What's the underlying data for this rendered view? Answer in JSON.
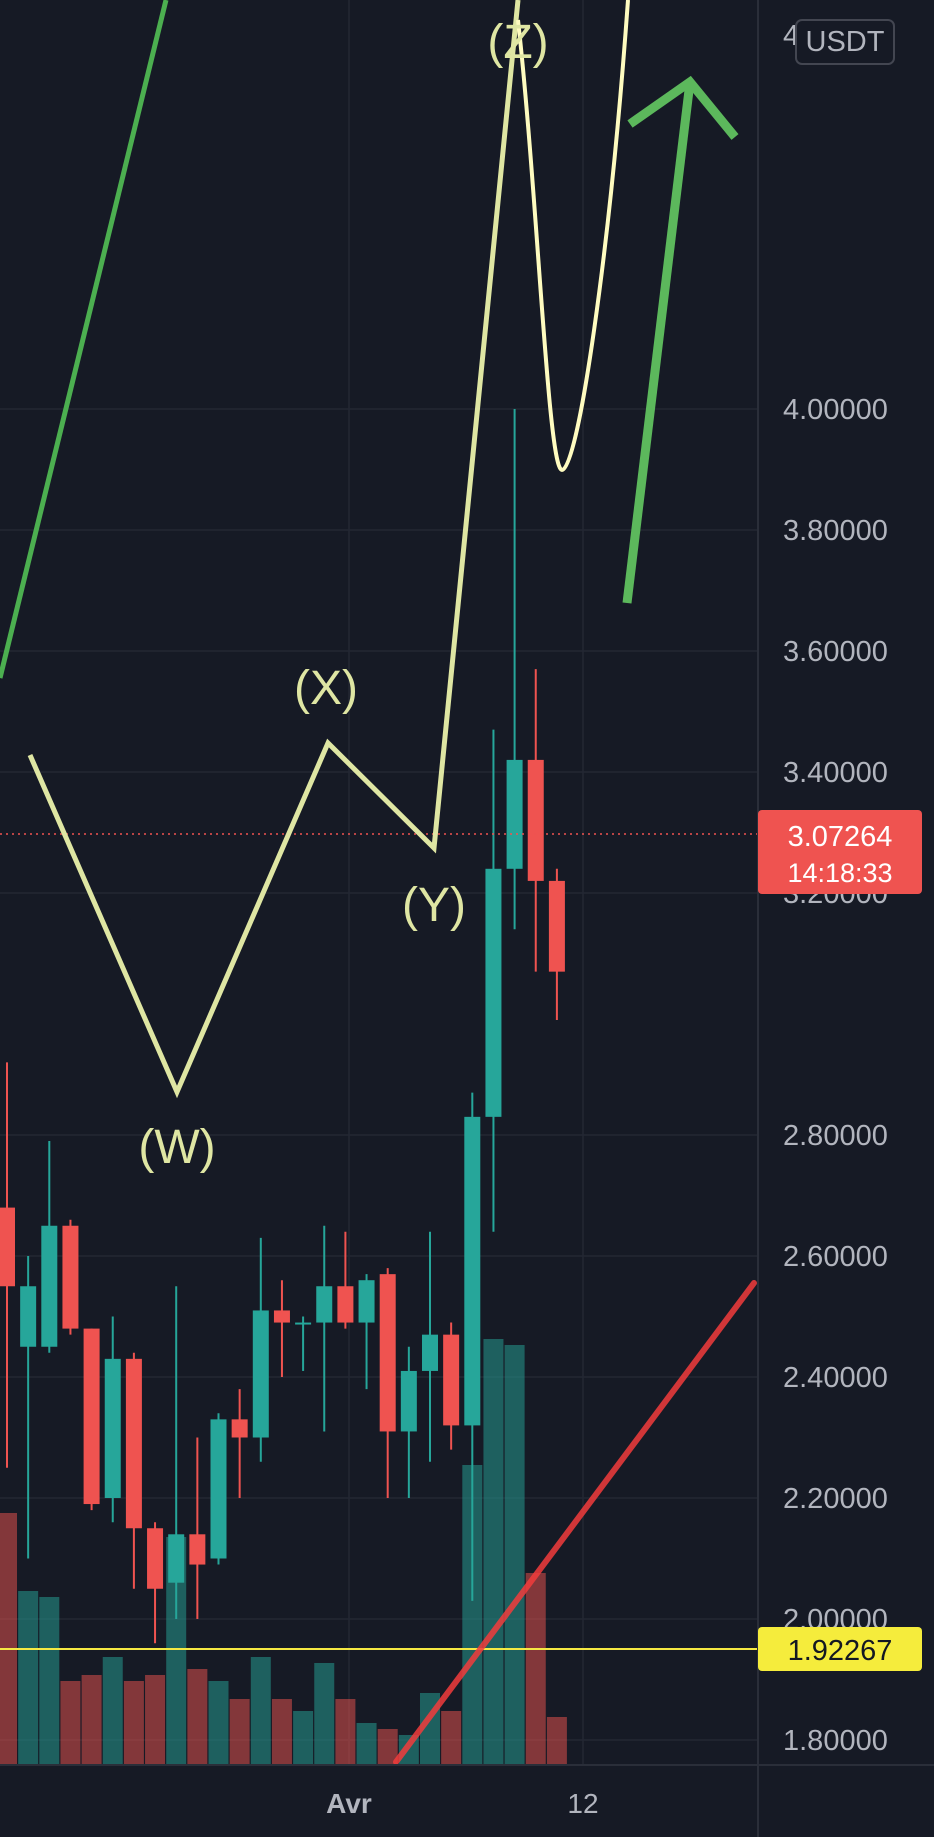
{
  "currency": "USDT",
  "colors": {
    "background": "#161a25",
    "up": "#26a69a",
    "down": "#ef5350",
    "wave": "#dfe6a3",
    "green_arrow": "#4caf50",
    "red_trend": "#f23c3c",
    "support": "#f5e943",
    "support_label_bg": "#f5ec3c",
    "last_price_bg": "#ef5350"
  },
  "last_price": {
    "value": "3.07264",
    "countdown": "14:18:33"
  },
  "support_level": {
    "value": "1.92267"
  },
  "chart_data": {
    "type": "candlestick",
    "price_axis": {
      "ticks": [
        "4.00000",
        "3.80000",
        "3.60000",
        "3.40000",
        "3.20000",
        "2.80000",
        "2.60000",
        "2.40000",
        "2.20000",
        "2.00000",
        "1.80000"
      ],
      "partial_top_tick": "4"
    },
    "time_axis": {
      "ticks": [
        "Avr",
        "12"
      ]
    },
    "wave_labels": [
      "(W)",
      "(X)",
      "(Y)",
      "(Z)"
    ],
    "candles": [
      {
        "o": 2.68,
        "h": 2.92,
        "l": 2.25,
        "c": 2.55,
        "vol": 0.42
      },
      {
        "o": 2.45,
        "h": 2.6,
        "l": 2.1,
        "c": 2.55,
        "vol": 0.29
      },
      {
        "o": 2.45,
        "h": 2.79,
        "l": 2.44,
        "c": 2.65,
        "vol": 0.28
      },
      {
        "o": 2.65,
        "h": 2.66,
        "l": 2.47,
        "c": 2.48,
        "vol": 0.14
      },
      {
        "o": 2.48,
        "h": 2.48,
        "l": 2.18,
        "c": 2.19,
        "vol": 0.15
      },
      {
        "o": 2.2,
        "h": 2.5,
        "l": 2.16,
        "c": 2.43,
        "vol": 0.18
      },
      {
        "o": 2.43,
        "h": 2.44,
        "l": 2.05,
        "c": 2.15,
        "vol": 0.14
      },
      {
        "o": 2.15,
        "h": 2.16,
        "l": 1.96,
        "c": 2.05,
        "vol": 0.15
      },
      {
        "o": 2.06,
        "h": 2.55,
        "l": 2.0,
        "c": 2.14,
        "vol": 0.38
      },
      {
        "o": 2.14,
        "h": 2.3,
        "l": 2.0,
        "c": 2.09,
        "vol": 0.16
      },
      {
        "o": 2.1,
        "h": 2.34,
        "l": 2.09,
        "c": 2.33,
        "vol": 0.14
      },
      {
        "o": 2.33,
        "h": 2.38,
        "l": 2.2,
        "c": 2.3,
        "vol": 0.11
      },
      {
        "o": 2.3,
        "h": 2.63,
        "l": 2.26,
        "c": 2.51,
        "vol": 0.18
      },
      {
        "o": 2.51,
        "h": 2.56,
        "l": 2.4,
        "c": 2.49,
        "vol": 0.11
      },
      {
        "o": 2.49,
        "h": 2.5,
        "l": 2.41,
        "c": 2.49,
        "vol": 0.09
      },
      {
        "o": 2.49,
        "h": 2.65,
        "l": 2.31,
        "c": 2.55,
        "vol": 0.17
      },
      {
        "o": 2.55,
        "h": 2.64,
        "l": 2.48,
        "c": 2.49,
        "vol": 0.11
      },
      {
        "o": 2.49,
        "h": 2.57,
        "l": 2.38,
        "c": 2.56,
        "vol": 0.07
      },
      {
        "o": 2.57,
        "h": 2.58,
        "l": 2.2,
        "c": 2.31,
        "vol": 0.06
      },
      {
        "o": 2.31,
        "h": 2.45,
        "l": 2.2,
        "c": 2.41,
        "vol": 0.05
      },
      {
        "o": 2.41,
        "h": 2.64,
        "l": 2.26,
        "c": 2.47,
        "vol": 0.12
      },
      {
        "o": 2.47,
        "h": 2.49,
        "l": 2.28,
        "c": 2.32,
        "vol": 0.09
      },
      {
        "o": 2.32,
        "h": 2.87,
        "l": 2.03,
        "c": 2.83,
        "vol": 0.5
      },
      {
        "o": 2.83,
        "h": 3.47,
        "l": 2.64,
        "c": 3.24,
        "vol": 0.71
      },
      {
        "o": 3.24,
        "h": 4.0,
        "l": 3.14,
        "c": 3.42,
        "vol": 0.7
      },
      {
        "o": 3.42,
        "h": 3.57,
        "l": 3.07,
        "c": 3.22,
        "vol": 0.32
      },
      {
        "o": 3.22,
        "h": 3.24,
        "l": 2.99,
        "c": 3.07,
        "vol": 0.08
      }
    ]
  }
}
